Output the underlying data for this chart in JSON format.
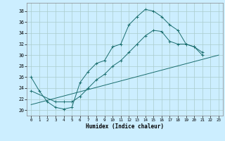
{
  "title": "",
  "xlabel": "Humidex (Indice chaleur)",
  "background_color": "#cceeff",
  "grid_color": "#aacccc",
  "line_color": "#1a6e6e",
  "xlim": [
    -0.5,
    23.5
  ],
  "ylim": [
    19.0,
    39.5
  ],
  "yticks": [
    20,
    22,
    24,
    26,
    28,
    30,
    32,
    34,
    36,
    38
  ],
  "xticks": [
    0,
    1,
    2,
    3,
    4,
    5,
    6,
    7,
    8,
    9,
    10,
    11,
    12,
    13,
    14,
    15,
    16,
    17,
    18,
    19,
    20,
    21,
    22,
    23
  ],
  "line1_x": [
    0,
    1,
    2,
    3,
    4,
    5,
    6,
    7,
    8,
    9,
    10,
    11,
    12,
    13,
    14,
    15,
    16,
    17,
    18,
    19,
    20,
    21
  ],
  "line1_y": [
    26,
    23.5,
    21.5,
    20.5,
    20.2,
    20.5,
    25.0,
    27.0,
    28.5,
    29.0,
    31.5,
    32.0,
    35.5,
    37.0,
    38.3,
    38.0,
    37.0,
    35.5,
    34.5,
    32.0,
    31.5,
    30.5
  ],
  "line2_x": [
    0,
    3,
    4,
    5,
    6,
    7,
    8,
    9,
    10,
    11,
    12,
    13,
    14,
    15,
    16,
    17,
    18,
    19,
    20,
    21
  ],
  "line2_y": [
    23.5,
    21.5,
    21.5,
    21.5,
    22.5,
    24.0,
    25.5,
    26.5,
    28.0,
    29.0,
    30.5,
    32.0,
    33.5,
    34.5,
    34.3,
    32.5,
    32.0,
    32.0,
    31.5,
    30.0
  ],
  "line3_x": [
    0,
    23
  ],
  "line3_y": [
    21.0,
    30.0
  ]
}
